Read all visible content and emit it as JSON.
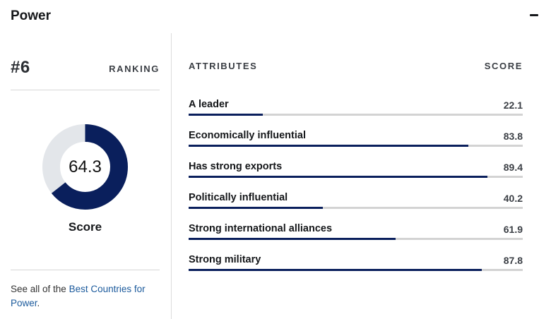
{
  "header": {
    "title": "Power"
  },
  "ranking": {
    "rank": "#6",
    "label": "RANKING"
  },
  "score": {
    "value": 64.3,
    "value_text": "64.3",
    "label": "Score",
    "max": 100
  },
  "colors": {
    "accent": "#0a1f5c",
    "track": "#e3e6ea",
    "bar_track": "#d3d3d3",
    "link": "#1b5a9c"
  },
  "footer": {
    "prefix": "See all of the ",
    "link_text": "Best Countries for Power",
    "suffix": "."
  },
  "attributes": {
    "header_label": "ATTRIBUTES",
    "score_label": "SCORE",
    "items": [
      {
        "name": "A leader",
        "score": "22.1",
        "value": 22.1
      },
      {
        "name": "Economically influential",
        "score": "83.8",
        "value": 83.8
      },
      {
        "name": "Has strong exports",
        "score": "89.4",
        "value": 89.4
      },
      {
        "name": "Politically influential",
        "score": "40.2",
        "value": 40.2
      },
      {
        "name": "Strong international alliances",
        "score": "61.9",
        "value": 61.9
      },
      {
        "name": "Strong military",
        "score": "87.8",
        "value": 87.8
      }
    ]
  }
}
